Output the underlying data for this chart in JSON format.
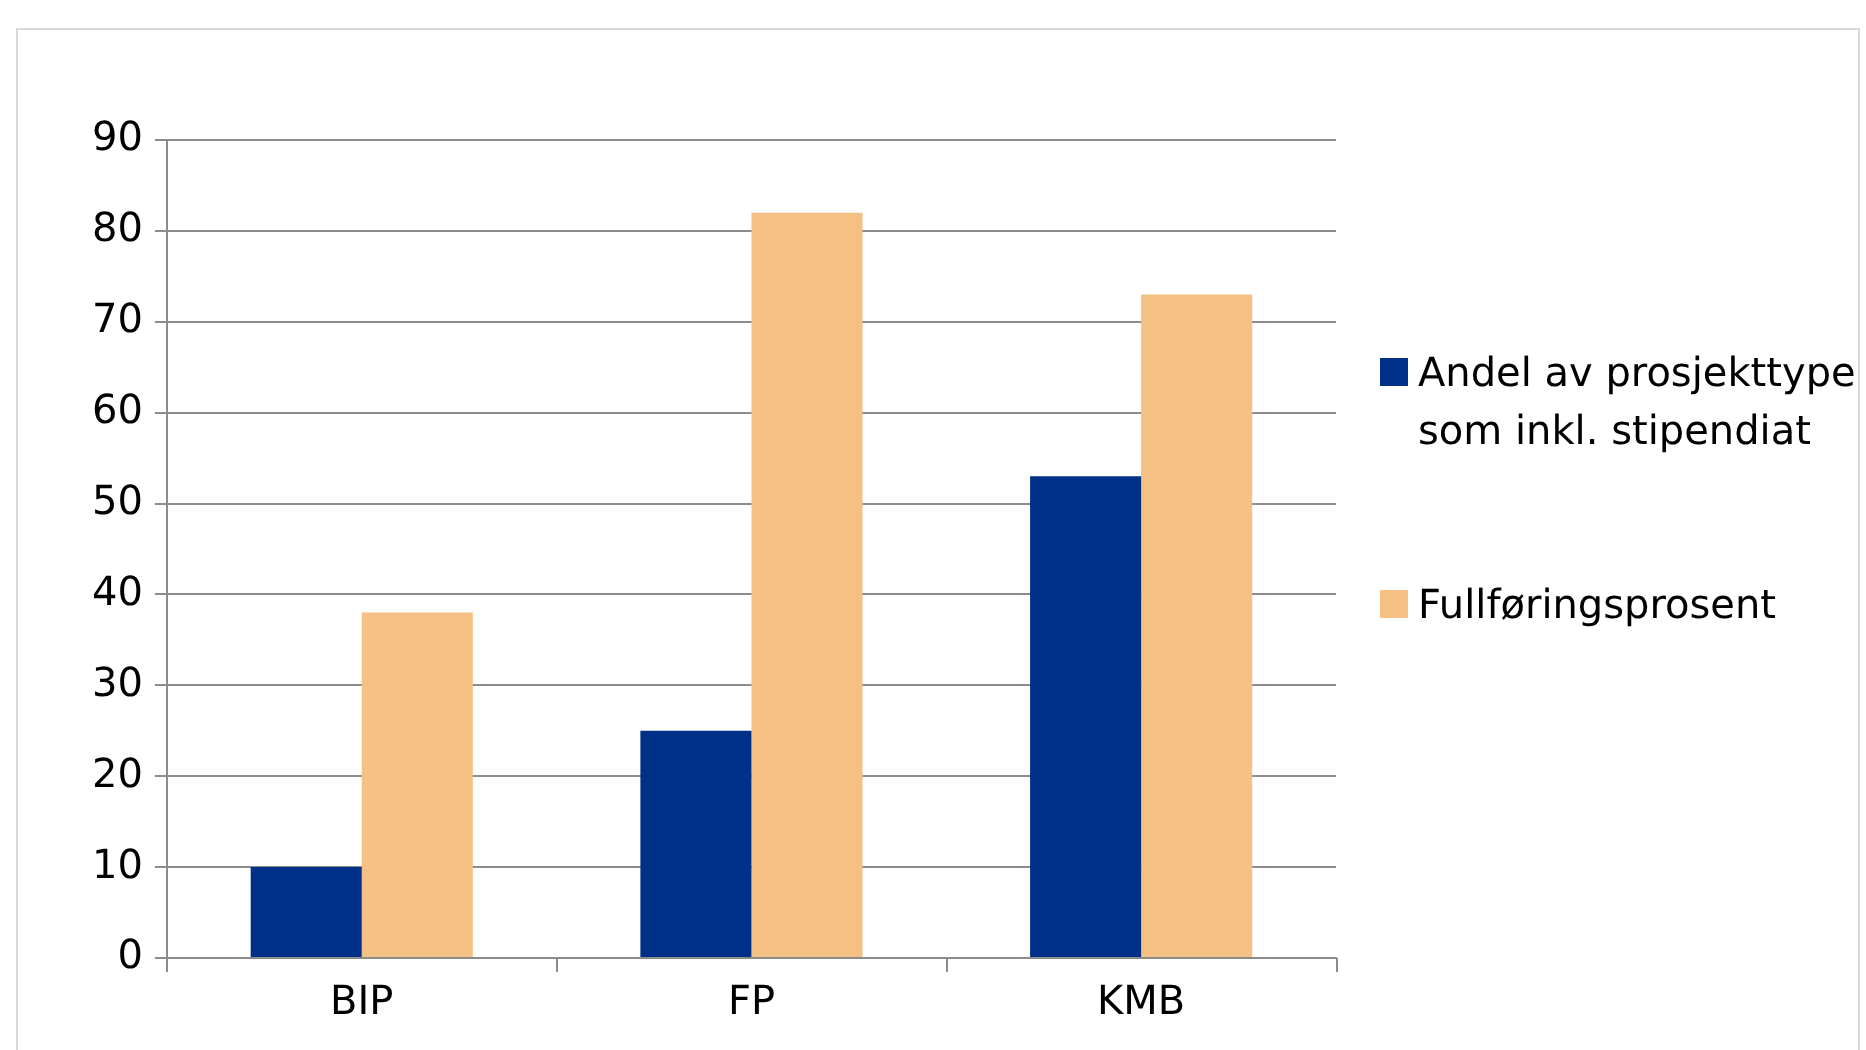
{
  "chart_data": {
    "type": "bar",
    "categories": [
      "BIP",
      "FP",
      "KMB"
    ],
    "series": [
      {
        "name": "Andel av prosjekttype som inkl. stipendiat",
        "color": "#003087",
        "values": [
          10,
          25,
          53
        ]
      },
      {
        "name": "Fullføringsprosent",
        "color": "#f4c083",
        "values": [
          38,
          82,
          73
        ]
      }
    ],
    "ylim": [
      0,
      90
    ],
    "yticks": [
      0,
      10,
      20,
      30,
      40,
      50,
      60,
      70,
      80,
      90
    ],
    "grid": "y",
    "legend": "right"
  }
}
